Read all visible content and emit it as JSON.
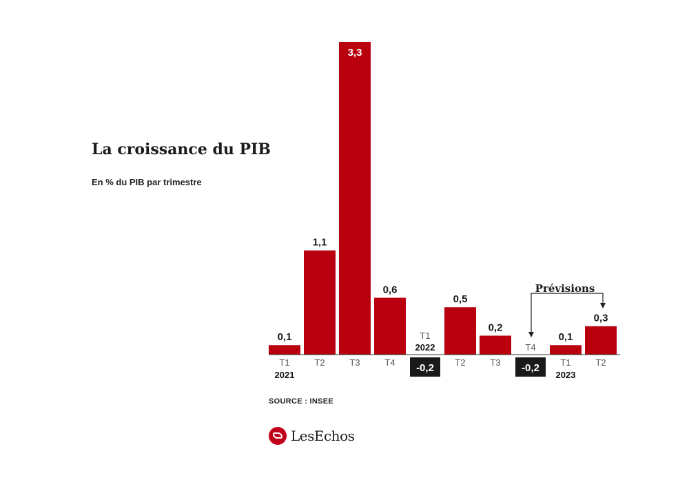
{
  "chart_data": {
    "type": "bar",
    "title": "La croissance du PIB",
    "subtitle": "En % du PIB par trimestre",
    "categories": [
      "T1",
      "T2",
      "T3",
      "T4",
      "T1",
      "T2",
      "T3",
      "T4",
      "T1",
      "T2"
    ],
    "years": [
      "2021",
      "",
      "",
      "",
      "2022",
      "",
      "",
      "",
      "2023",
      ""
    ],
    "values": [
      0.1,
      1.1,
      3.3,
      0.6,
      -0.2,
      0.5,
      0.2,
      -0.2,
      0.1,
      0.3
    ],
    "value_labels": [
      "0,1",
      "1,1",
      "3,3",
      "0,6",
      "-0,2",
      "0,5",
      "0,2",
      "-0,2",
      "0,1",
      "0,3"
    ],
    "annotation": "Prévisions",
    "bar_color": "#b8000f",
    "negative_label_bg": "#1a1a1a",
    "ylim": [
      -0.2,
      3.3
    ]
  },
  "footer": {
    "source": "SOURCE : INSEE",
    "brand": "LesEchos"
  }
}
